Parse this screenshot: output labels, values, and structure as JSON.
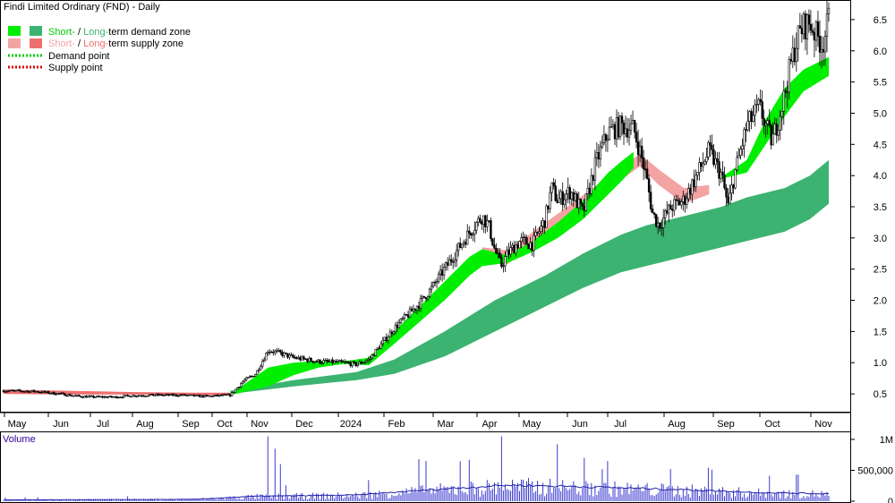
{
  "chart_title": "Findi Limited Ordinary (FND) - Daily",
  "legend": {
    "demand": {
      "short": "Short-",
      "sep": " / ",
      "long": "Long-",
      "rest": "term demand zone"
    },
    "supply": {
      "short": "Short-",
      "sep": " / ",
      "long": "Long-",
      "rest": "term supply zone"
    },
    "demand_point": "Demand point",
    "supply_point": "Supply point"
  },
  "volume_label": "Volume",
  "colors": {
    "short_demand": "#00ee00",
    "long_demand": "#3cb371",
    "short_supply": "#f4a3a3",
    "long_supply": "#ef6f6f",
    "demand_point": "#00cc00",
    "supply_point": "#dd0000",
    "candle": "#000000",
    "volume_bar": "#3a3ad0",
    "volume_avg": "#2222aa",
    "volume_label": "#330099"
  },
  "chart_data": {
    "type": "candlestick",
    "title": "Findi Limited Ordinary (FND) - Daily",
    "x_tick_labels": [
      "May",
      "Jun",
      "Jul",
      "Aug",
      "Sep",
      "Oct",
      "Nov",
      "Dec",
      "2024",
      "Feb",
      "Mar",
      "Apr",
      "May",
      "Jun",
      "Jul",
      "Aug",
      "Sep",
      "Oct",
      "Nov"
    ],
    "y_tick_labels": [
      "0.5",
      "1.0",
      "1.5",
      "2.0",
      "2.5",
      "3.0",
      "3.5",
      "4.0",
      "4.5",
      "5.0",
      "5.5",
      "6.0",
      "6.5"
    ],
    "ylim": [
      0.3,
      6.7
    ],
    "volume_tick_labels": [
      "1M",
      "500,000",
      "0"
    ],
    "volume_ylim": [
      0,
      1100000
    ],
    "price_path": [
      [
        0,
        0.55
      ],
      [
        5,
        0.54
      ],
      [
        9,
        0.5
      ],
      [
        12,
        0.46
      ],
      [
        15,
        0.45
      ],
      [
        18,
        0.45
      ],
      [
        20,
        0.47
      ],
      [
        23,
        0.48
      ],
      [
        25,
        0.48
      ],
      [
        28,
        0.48
      ],
      [
        32,
        0.46
      ],
      [
        36,
        0.48
      ],
      [
        38,
        0.7
      ],
      [
        40,
        0.82
      ],
      [
        42,
        1.2
      ],
      [
        44,
        1.15
      ],
      [
        46,
        1.08
      ],
      [
        50,
        1.02
      ],
      [
        54,
        1.0
      ],
      [
        56,
        0.97
      ],
      [
        58,
        1.05
      ],
      [
        60,
        1.3
      ],
      [
        62,
        1.55
      ],
      [
        64,
        1.75
      ],
      [
        66,
        1.95
      ],
      [
        68,
        2.2
      ],
      [
        70,
        2.5
      ],
      [
        72,
        2.8
      ],
      [
        74,
        3.1
      ],
      [
        76,
        3.35
      ],
      [
        77,
        3.2
      ],
      [
        78,
        2.8
      ],
      [
        79,
        2.55
      ],
      [
        80,
        2.75
      ],
      [
        82,
        2.95
      ],
      [
        84,
        2.9
      ],
      [
        86,
        3.3
      ],
      [
        87,
        3.8
      ],
      [
        88,
        3.6
      ],
      [
        90,
        3.75
      ],
      [
        92,
        3.4
      ],
      [
        94,
        4.2
      ],
      [
        96,
        4.7
      ],
      [
        98,
        4.8
      ],
      [
        100,
        4.75
      ],
      [
        101,
        4.4
      ],
      [
        102,
        4.0
      ],
      [
        103,
        3.4
      ],
      [
        104,
        3.2
      ],
      [
        106,
        3.5
      ],
      [
        108,
        3.6
      ],
      [
        110,
        4.0
      ],
      [
        112,
        4.4
      ],
      [
        114,
        4.0
      ],
      [
        115,
        3.5
      ],
      [
        116,
        4.0
      ],
      [
        118,
        4.8
      ],
      [
        120,
        5.1
      ],
      [
        121,
        4.8
      ],
      [
        122,
        4.55
      ],
      [
        123,
        4.9
      ],
      [
        124,
        5.3
      ],
      [
        125,
        5.8
      ],
      [
        126,
        6.2
      ],
      [
        127,
        6.4
      ],
      [
        128,
        6.45
      ],
      [
        129,
        6.25
      ],
      [
        130,
        6.1
      ],
      [
        131,
        6.5
      ]
    ],
    "short_demand_zone": {
      "x": [
        36,
        42,
        46,
        50,
        54,
        58,
        62,
        66,
        70,
        74,
        76,
        80,
        84,
        88,
        92,
        96,
        98,
        100,
        104,
        110,
        114,
        118,
        121,
        124,
        127,
        131
      ],
      "upper": [
        0.5,
        0.92,
        1.0,
        1.03,
        1.02,
        1.08,
        1.5,
        1.9,
        2.3,
        2.7,
        2.82,
        2.72,
        2.95,
        3.25,
        3.6,
        4.05,
        4.22,
        4.38,
        null,
        null,
        3.98,
        4.25,
        4.9,
        5.4,
        5.7,
        5.9
      ],
      "lower": [
        0.48,
        0.62,
        0.8,
        0.92,
        0.98,
        0.96,
        1.3,
        1.65,
        2.0,
        2.4,
        2.55,
        2.6,
        2.78,
        3.0,
        3.3,
        3.7,
        3.9,
        4.12,
        null,
        null,
        3.95,
        4.05,
        4.5,
        4.95,
        5.35,
        5.6
      ]
    },
    "short_supply_zone": {
      "x": [
        76,
        80,
        101,
        104,
        108,
        112
      ],
      "upper": [
        2.85,
        2.8,
        4.35,
        4.1,
        3.8,
        3.85
      ],
      "lower": [
        2.62,
        2.58,
        4.15,
        3.85,
        3.55,
        3.7
      ]
    },
    "long_demand_zone": {
      "x": [
        36,
        46,
        56,
        62,
        70,
        78,
        86,
        92,
        98,
        102,
        108,
        114,
        118,
        124,
        128,
        131
      ],
      "upper": [
        0.55,
        0.72,
        0.85,
        1.05,
        1.5,
        2.0,
        2.4,
        2.75,
        3.05,
        3.2,
        3.35,
        3.5,
        3.65,
        3.8,
        4.0,
        4.25
      ],
      "lower": [
        0.5,
        0.62,
        0.72,
        0.82,
        1.1,
        1.5,
        1.9,
        2.2,
        2.45,
        2.55,
        2.7,
        2.85,
        2.95,
        3.1,
        3.3,
        3.55
      ]
    },
    "long_supply_zone": {
      "x": [
        0,
        10,
        20,
        30,
        36
      ],
      "upper": [
        0.57,
        0.55,
        0.53,
        0.52,
        0.52
      ],
      "lower": [
        0.5,
        0.49,
        0.49,
        0.48,
        0.48
      ]
    },
    "volume_avg_path": [
      [
        0,
        20000
      ],
      [
        30,
        30000
      ],
      [
        40,
        80000
      ],
      [
        56,
        100000
      ],
      [
        70,
        200000
      ],
      [
        80,
        260000
      ],
      [
        90,
        240000
      ],
      [
        100,
        210000
      ],
      [
        110,
        180000
      ],
      [
        120,
        140000
      ],
      [
        131,
        120000
      ]
    ],
    "volume_spikes": [
      [
        42,
        1050000
      ],
      [
        43,
        850000
      ],
      [
        44,
        600000
      ],
      [
        66,
        680000
      ],
      [
        67,
        650000
      ],
      [
        79,
        1050000
      ],
      [
        88,
        920000
      ],
      [
        95,
        520000
      ],
      [
        96,
        650000
      ],
      [
        106,
        520000
      ],
      [
        112,
        540000
      ],
      [
        126,
        430000
      ]
    ]
  }
}
